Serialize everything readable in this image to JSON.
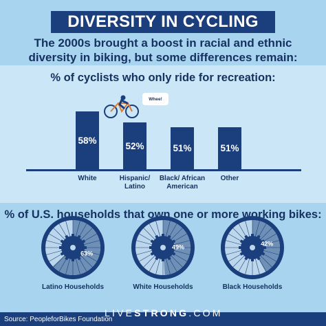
{
  "title": "DIVERSITY IN CYCLING",
  "subtitle": "The 2000s brought a boost in racial and ethnic diversity in biking, but some differences remain:",
  "speech_bubble": "Whee!",
  "source": "Source: PeopleforBikes Foundation",
  "brand": {
    "light": "LIVE",
    "bold": "STRONG",
    "suffix": ".COM"
  },
  "colors": {
    "background": "#a9d4ef",
    "panel": "#cbe6f7",
    "navy": "#1b3f7c",
    "wheel_highlight": "#6e8fb6"
  },
  "chart_data": [
    {
      "type": "bar",
      "title": "% of cyclists who only ride for recreation:",
      "categories": [
        "White",
        "Hispanic/ Latino",
        "Black/ African American",
        "Other"
      ],
      "values": [
        58,
        52,
        51,
        51
      ],
      "value_labels": [
        "58%",
        "52%",
        "51%",
        "51%"
      ]
    },
    {
      "type": "pie",
      "title": "% of U.S. households that own one or more working bikes:",
      "categories": [
        "Latino Households",
        "White Households",
        "Black Households"
      ],
      "values": [
        63,
        49,
        42
      ],
      "value_labels": [
        "63%",
        "49%",
        "42%"
      ]
    }
  ]
}
